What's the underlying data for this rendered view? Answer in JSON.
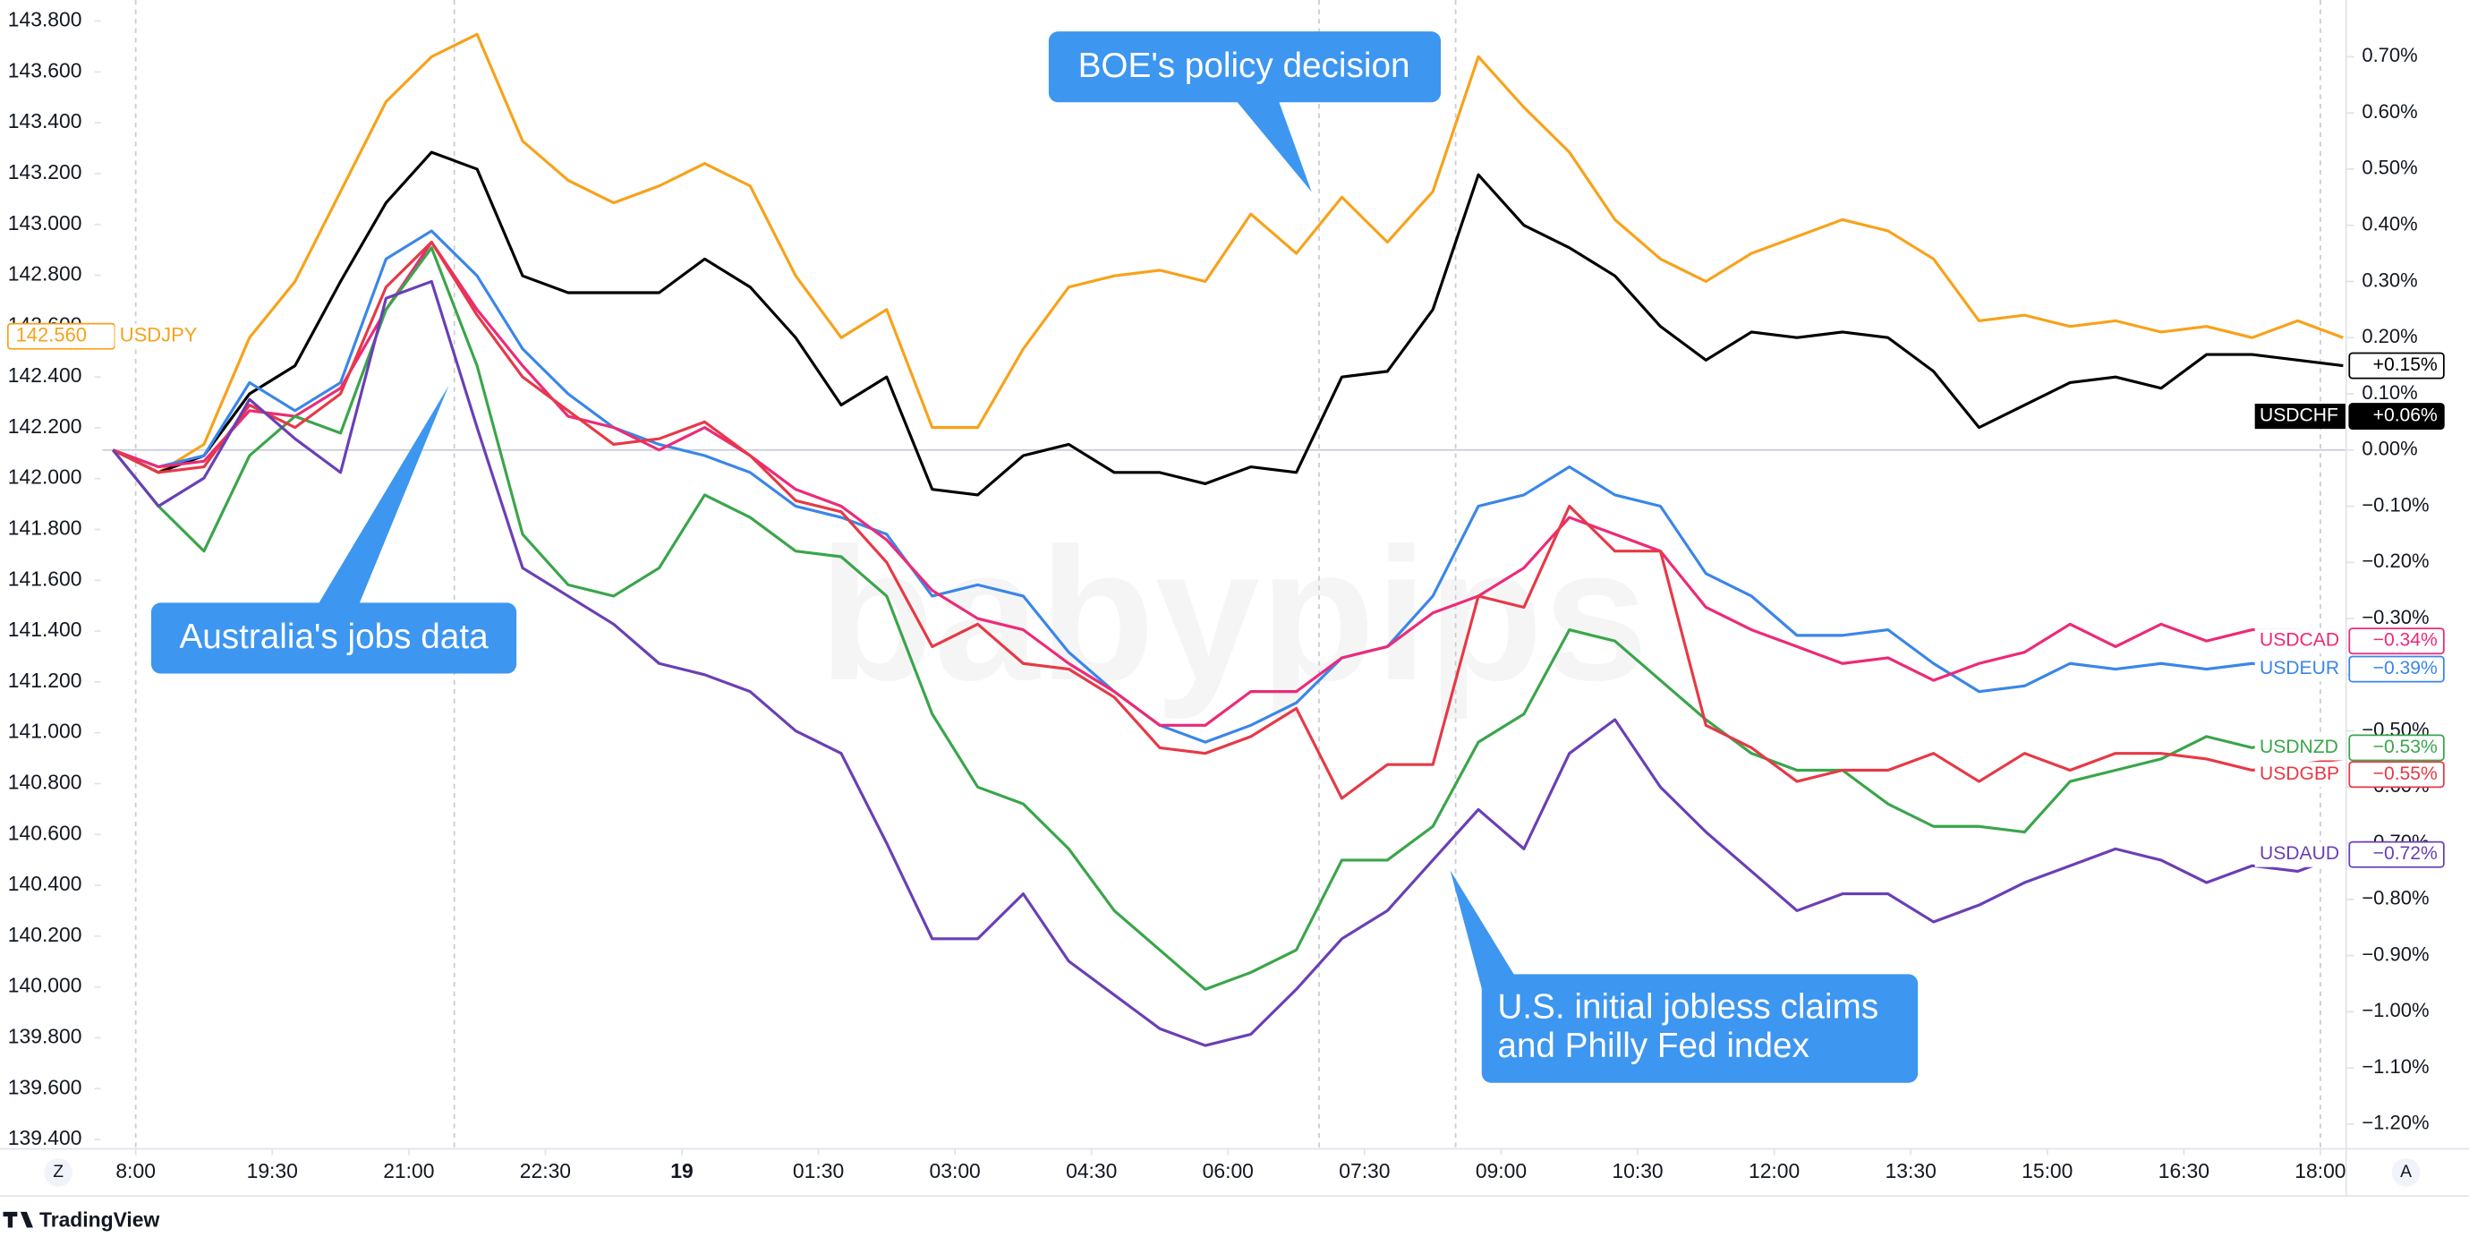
{
  "chart_data": {
    "type": "line",
    "x": [
      -15,
      15,
      45,
      75,
      105,
      135,
      165,
      195,
      225,
      255,
      285,
      315,
      345,
      375,
      405,
      435,
      465,
      495,
      525,
      555,
      585,
      615,
      645,
      675,
      705,
      735,
      765,
      795,
      825,
      855,
      885,
      915,
      945,
      975,
      1005,
      1035,
      1065,
      1095,
      1125,
      1155,
      1185,
      1215,
      1245,
      1275,
      1305,
      1335,
      1365,
      1395,
      1425,
      1455
    ],
    "xlim": [
      -22,
      1457
    ],
    "xticks": [
      {
        "value": 0,
        "label": "8:00"
      },
      {
        "value": 90,
        "label": "19:30"
      },
      {
        "value": 180,
        "label": "21:00"
      },
      {
        "value": 270,
        "label": "22:30"
      },
      {
        "value": 360,
        "label": "19"
      },
      {
        "value": 450,
        "label": "01:30"
      },
      {
        "value": 540,
        "label": "03:00"
      },
      {
        "value": 630,
        "label": "04:30"
      },
      {
        "value": 720,
        "label": "06:00"
      },
      {
        "value": 810,
        "label": "07:30"
      },
      {
        "value": 900,
        "label": "09:00"
      },
      {
        "value": 990,
        "label": "10:30"
      },
      {
        "value": 1080,
        "label": "12:00"
      },
      {
        "value": 1170,
        "label": "13:30"
      },
      {
        "value": 1260,
        "label": "15:00"
      },
      {
        "value": 1350,
        "label": "16:30"
      },
      {
        "value": 1440,
        "label": "18:00"
      }
    ],
    "ylim": [
      139.363,
      143.883
    ],
    "yticks": [
      {
        "value": 139.4,
        "label": "139.400"
      },
      {
        "value": 139.6,
        "label": "139.600"
      },
      {
        "value": 139.8,
        "label": "139.800"
      },
      {
        "value": 140.0,
        "label": "140.000"
      },
      {
        "value": 140.2,
        "label": "140.200"
      },
      {
        "value": 140.4,
        "label": "140.400"
      },
      {
        "value": 140.6,
        "label": "140.600"
      },
      {
        "value": 140.8,
        "label": "140.800"
      },
      {
        "value": 141.0,
        "label": "141.000"
      },
      {
        "value": 141.2,
        "label": "141.200"
      },
      {
        "value": 141.4,
        "label": "141.400"
      },
      {
        "value": 141.6,
        "label": "141.600"
      },
      {
        "value": 141.8,
        "label": "141.800"
      },
      {
        "value": 142.0,
        "label": "142.000"
      },
      {
        "value": 142.2,
        "label": "142.200"
      },
      {
        "value": 142.4,
        "label": "142.400"
      },
      {
        "value": 142.6,
        "label": "142.600"
      },
      {
        "value": 142.8,
        "label": "142.800"
      },
      {
        "value": 143.0,
        "label": "143.000"
      },
      {
        "value": 143.2,
        "label": "143.200"
      },
      {
        "value": 143.4,
        "label": "143.400"
      },
      {
        "value": 143.6,
        "label": "143.600"
      },
      {
        "value": 143.8,
        "label": "143.800"
      }
    ],
    "y2lim": [
      -1.244,
      0.801
    ],
    "y2ticks": [
      {
        "value": 0.7,
        "label": "0.70%"
      },
      {
        "value": 0.6,
        "label": "0.60%"
      },
      {
        "value": 0.5,
        "label": "0.50%"
      },
      {
        "value": 0.4,
        "label": "0.40%"
      },
      {
        "value": 0.3,
        "label": "0.30%"
      },
      {
        "value": 0.2,
        "label": "0.20%"
      },
      {
        "value": 0.1,
        "label": "0.10%"
      },
      {
        "value": 0,
        "label": "0.00%"
      },
      {
        "value": -0.1,
        "label": "−0.10%"
      },
      {
        "value": -0.2,
        "label": "−0.20%"
      },
      {
        "value": -0.3,
        "label": "−0.30%"
      },
      {
        "value": -0.4,
        "label": "−0.40%"
      },
      {
        "value": -0.5,
        "label": "−0.50%"
      },
      {
        "value": -0.6,
        "label": "−0.60%"
      },
      {
        "value": -0.7,
        "label": "−0.70%"
      },
      {
        "value": -0.8,
        "label": "−0.80%"
      },
      {
        "value": -0.9,
        "label": "−0.90%"
      },
      {
        "value": -1.0,
        "label": "−1.00%"
      },
      {
        "value": -1.1,
        "label": "−1.10%"
      },
      {
        "value": -1.2,
        "label": "−1.20%"
      }
    ],
    "zero_line": 0,
    "markers": [
      0,
      210,
      780,
      870,
      1440
    ],
    "series": [
      {
        "name": "USDJPY",
        "color": "#f7a21b",
        "axis": "y2",
        "values": [
          0.0,
          -0.04,
          0.01,
          0.2,
          0.3,
          0.46,
          0.62,
          0.7,
          0.74,
          0.55,
          0.48,
          0.44,
          0.47,
          0.51,
          0.47,
          0.31,
          0.2,
          0.25,
          0.04,
          0.04,
          0.18,
          0.29,
          0.31,
          0.32,
          0.3,
          0.42,
          0.35,
          0.45,
          0.37,
          0.46,
          0.7,
          0.61,
          0.53,
          0.41,
          0.34,
          0.3,
          0.35,
          0.38,
          0.41,
          0.39,
          0.34,
          0.23,
          0.24,
          0.22,
          0.23,
          0.21,
          0.22,
          0.2,
          0.23,
          0.2
        ]
      },
      {
        "color": "#000000",
        "axis": "y2",
        "end_label": "+0.15%",
        "values": [
          0.0,
          -0.04,
          -0.01,
          0.1,
          0.15,
          0.3,
          0.44,
          0.53,
          0.5,
          0.31,
          0.28,
          0.28,
          0.28,
          0.34,
          0.29,
          0.2,
          0.08,
          0.13,
          -0.07,
          -0.08,
          -0.01,
          0.01,
          -0.04,
          -0.04,
          -0.06,
          -0.03,
          -0.04,
          0.13,
          0.14,
          0.25,
          0.49,
          0.4,
          0.36,
          0.31,
          0.22,
          0.16,
          0.21,
          0.2,
          0.21,
          0.2,
          0.14,
          0.04,
          0.08,
          0.12,
          0.13,
          0.11,
          0.17,
          0.17,
          0.16,
          0.15
        ]
      },
      {
        "name": "USDEUR",
        "color": "#3a86e8",
        "axis": "y2",
        "end_label": "−0.39%",
        "values": [
          0.0,
          -0.03,
          -0.01,
          0.12,
          0.07,
          0.12,
          0.34,
          0.39,
          0.31,
          0.18,
          0.1,
          0.04,
          0.01,
          -0.01,
          -0.04,
          -0.1,
          -0.12,
          -0.15,
          -0.26,
          -0.24,
          -0.26,
          -0.36,
          -0.43,
          -0.49,
          -0.52,
          -0.49,
          -0.45,
          -0.37,
          -0.35,
          -0.26,
          -0.1,
          -0.08,
          -0.03,
          -0.08,
          -0.1,
          -0.22,
          -0.26,
          -0.33,
          -0.33,
          -0.32,
          -0.38,
          -0.43,
          -0.42,
          -0.38,
          -0.39,
          -0.38,
          -0.39,
          -0.38,
          -0.39,
          -0.39
        ]
      },
      {
        "name": "USDCAD",
        "color": "#ec2a78",
        "axis": "y2",
        "end_label": "−0.34%",
        "values": [
          0.0,
          -0.03,
          -0.02,
          0.07,
          0.06,
          0.11,
          0.25,
          0.37,
          0.25,
          0.15,
          0.06,
          0.04,
          0.0,
          0.04,
          -0.01,
          -0.07,
          -0.1,
          -0.16,
          -0.25,
          -0.3,
          -0.32,
          -0.38,
          -0.43,
          -0.49,
          -0.49,
          -0.43,
          -0.43,
          -0.37,
          -0.35,
          -0.29,
          -0.26,
          -0.21,
          -0.12,
          -0.15,
          -0.18,
          -0.28,
          -0.32,
          -0.35,
          -0.38,
          -0.37,
          -0.41,
          -0.38,
          -0.36,
          -0.31,
          -0.35,
          -0.31,
          -0.34,
          -0.32,
          -0.32,
          -0.34
        ]
      },
      {
        "name": "USDNZD",
        "color": "#3aa54b",
        "axis": "y2",
        "end_label": "−0.53%",
        "values": [
          0.0,
          -0.1,
          -0.18,
          -0.01,
          0.06,
          0.03,
          0.25,
          0.36,
          0.15,
          -0.15,
          -0.24,
          -0.26,
          -0.21,
          -0.08,
          -0.12,
          -0.18,
          -0.19,
          -0.26,
          -0.47,
          -0.6,
          -0.63,
          -0.71,
          -0.82,
          -0.89,
          -0.96,
          -0.93,
          -0.89,
          -0.73,
          -0.73,
          -0.67,
          -0.52,
          -0.47,
          -0.32,
          -0.34,
          -0.41,
          -0.48,
          -0.54,
          -0.57,
          -0.57,
          -0.63,
          -0.67,
          -0.67,
          -0.68,
          -0.59,
          -0.57,
          -0.55,
          -0.51,
          -0.53,
          -0.51,
          -0.53
        ]
      },
      {
        "name": "USDGBP",
        "color": "#e63946",
        "axis": "y2",
        "end_label": "−0.55%",
        "values": [
          0.0,
          -0.04,
          -0.03,
          0.08,
          0.04,
          0.1,
          0.29,
          0.37,
          0.24,
          0.13,
          0.07,
          0.01,
          0.02,
          0.05,
          -0.01,
          -0.09,
          -0.11,
          -0.2,
          -0.35,
          -0.31,
          -0.38,
          -0.39,
          -0.44,
          -0.53,
          -0.54,
          -0.51,
          -0.46,
          -0.62,
          -0.56,
          -0.56,
          -0.26,
          -0.28,
          -0.1,
          -0.18,
          -0.18,
          -0.49,
          -0.53,
          -0.59,
          -0.57,
          -0.57,
          -0.54,
          -0.59,
          -0.54,
          -0.57,
          -0.54,
          -0.54,
          -0.55,
          -0.57,
          -0.56,
          -0.55
        ]
      },
      {
        "name": "USDAUD",
        "color": "#6a3fb5",
        "axis": "y2",
        "end_label": "−0.72%",
        "values": [
          0.0,
          -0.1,
          -0.05,
          0.09,
          0.02,
          -0.04,
          0.27,
          0.3,
          0.04,
          -0.21,
          -0.26,
          -0.31,
          -0.38,
          -0.4,
          -0.43,
          -0.5,
          -0.54,
          -0.7,
          -0.87,
          -0.87,
          -0.79,
          -0.91,
          -0.97,
          -1.03,
          -1.06,
          -1.04,
          -0.96,
          -0.87,
          -0.82,
          -0.73,
          -0.64,
          -0.71,
          -0.54,
          -0.48,
          -0.6,
          -0.68,
          -0.75,
          -0.82,
          -0.79,
          -0.79,
          -0.84,
          -0.81,
          -0.77,
          -0.74,
          -0.71,
          -0.73,
          -0.77,
          -0.74,
          -0.75,
          -0.72
        ]
      }
    ],
    "left_tag": {
      "name": "USDJPY",
      "value": 142.56,
      "label": "142.560",
      "color": "#f7a21b"
    },
    "tags": [
      {
        "name": "USDCHF",
        "value": 0.06,
        "label": "+0.06%"
      }
    ],
    "annotations": [
      {
        "text": "BOE's policy decision"
      },
      {
        "text": "Australia's jobs data"
      },
      {
        "lines": [
          "U.S. initial jobless claims",
          "and Philly Fed index"
        ]
      }
    ],
    "watermark": "babypips",
    "buttons": [
      "Z",
      "A"
    ],
    "brand": "TradingView"
  }
}
